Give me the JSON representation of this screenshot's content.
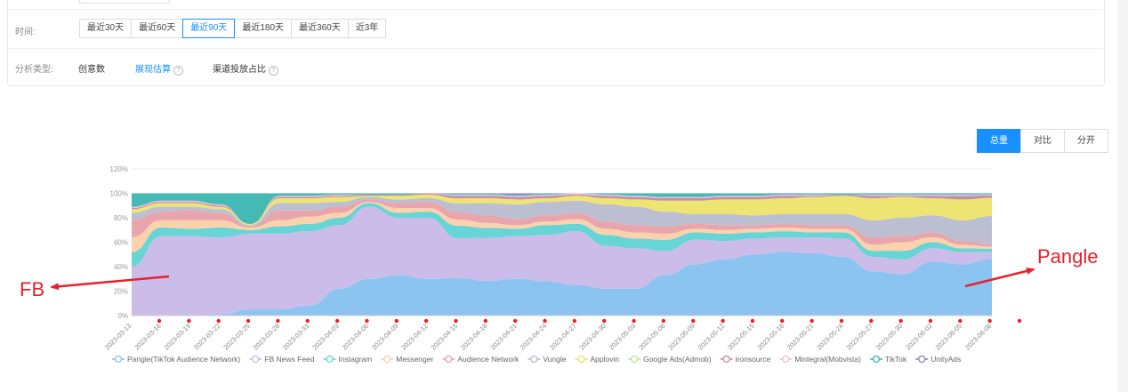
{
  "filters": {
    "time_label": "时间:",
    "time_options": [
      "最近30天",
      "最近60天",
      "最近90天",
      "最近180天",
      "最近360天",
      "近3年"
    ],
    "time_selected": "最近90天",
    "analysis_label": "分析类型:",
    "analysis_options": [
      "创意数",
      "展现估算",
      "渠道投放占比"
    ],
    "analysis_selected": "展现估算"
  },
  "view_modes": {
    "options": [
      "总量",
      "对比",
      "分开"
    ],
    "selected": "总量"
  },
  "annotations": {
    "left": "FB",
    "right": "Pangle"
  },
  "colors": {
    "accent": "#1890ff",
    "marker": "#e8202a"
  },
  "chart_data": {
    "type": "area",
    "stacked": true,
    "normalized": true,
    "ylim": [
      0,
      120
    ],
    "yticks": [
      "0%",
      "20%",
      "40%",
      "60%",
      "80%",
      "100%",
      "120%"
    ],
    "x_labels": [
      "2023-03-13",
      "2023-03-16",
      "2023-03-19",
      "2023-03-22",
      "2023-03-25",
      "2023-03-28",
      "2023-03-31",
      "2023-04-03",
      "2023-04-06",
      "2023-04-09",
      "2023-04-12",
      "2023-04-15",
      "2023-04-18",
      "2023-04-21",
      "2023-04-24",
      "2023-04-27",
      "2023-04-30",
      "2023-05-03",
      "2023-05-06",
      "2023-05-09",
      "2023-05-12",
      "2023-05-15",
      "2023-05-18",
      "2023-05-21",
      "2023-05-24",
      "2023-05-27",
      "2023-05-30",
      "2023-06-02",
      "2023-06-05",
      "2023-06-08"
    ],
    "series": [
      {
        "name": "Pangle(TikTok Audience Network)",
        "color": "#85c1f0",
        "values": [
          0,
          0,
          0,
          1,
          5,
          5,
          8,
          22,
          30,
          33,
          30,
          30,
          28,
          30,
          28,
          25,
          22,
          22,
          33,
          42,
          46,
          50,
          52,
          51,
          48,
          36,
          34,
          44,
          42,
          50
        ]
      },
      {
        "name": "FB News Feed",
        "color": "#c8b8e8",
        "values": [
          40,
          65,
          65,
          63,
          62,
          62,
          61,
          52,
          59,
          47,
          50,
          32,
          35,
          35,
          38,
          44,
          35,
          33,
          20,
          20,
          15,
          13,
          12,
          13,
          15,
          12,
          12,
          11,
          10,
          6
        ]
      },
      {
        "name": "Instagram",
        "color": "#5fd3d3",
        "values": [
          12,
          7,
          6,
          8,
          3,
          6,
          6,
          6,
          3,
          4,
          5,
          10,
          8,
          6,
          8,
          6,
          9,
          8,
          9,
          6,
          6,
          5,
          5,
          4,
          5,
          5,
          7,
          5,
          3,
          3
        ]
      },
      {
        "name": "Messenger",
        "color": "#fbd0a8",
        "values": [
          12,
          6,
          7,
          6,
          2,
          5,
          6,
          4,
          1,
          4,
          3,
          5,
          4,
          3,
          3,
          4,
          5,
          5,
          5,
          3,
          3,
          3,
          3,
          3,
          3,
          5,
          7,
          4,
          3,
          2
        ]
      },
      {
        "name": "Audience Network",
        "color": "#e8a0a8",
        "values": [
          14,
          7,
          8,
          6,
          1,
          8,
          5,
          5,
          2,
          4,
          5,
          6,
          6,
          5,
          5,
          5,
          6,
          6,
          6,
          4,
          4,
          3,
          3,
          3,
          3,
          6,
          5,
          4,
          3,
          2
        ]
      },
      {
        "name": "Vungle",
        "color": "#b8bcd0",
        "values": [
          6,
          4,
          3,
          3,
          1,
          6,
          6,
          4,
          2,
          3,
          3,
          7,
          10,
          12,
          11,
          10,
          14,
          15,
          12,
          8,
          9,
          8,
          8,
          9,
          9,
          14,
          15,
          14,
          17,
          25
        ]
      },
      {
        "name": "Applovin",
        "color": "#ece36a",
        "values": [
          3,
          3,
          3,
          2,
          1,
          4,
          4,
          4,
          1,
          3,
          3,
          4,
          4,
          4,
          3,
          4,
          5,
          6,
          9,
          11,
          12,
          13,
          13,
          14,
          15,
          18,
          17,
          14,
          17,
          16
        ]
      },
      {
        "name": "Google Ads(Admob)",
        "color": "#bfe38c",
        "values": [
          0,
          0,
          0,
          0,
          0,
          0,
          0,
          0,
          0,
          0,
          0,
          0,
          0,
          0,
          0,
          0,
          0,
          0,
          0,
          0,
          0,
          0,
          0,
          0,
          0,
          0,
          0,
          0,
          0,
          0
        ]
      },
      {
        "name": "ironsource",
        "color": "#c08aa0",
        "values": [
          1,
          1,
          1,
          1,
          0,
          1,
          1,
          1,
          1,
          1,
          1,
          2,
          2,
          2,
          2,
          1,
          2,
          2,
          2,
          2,
          2,
          2,
          2,
          1,
          1,
          2,
          1,
          2,
          3,
          2
        ]
      },
      {
        "name": "Mintegral(Mobvista)",
        "color": "#f0b8e0",
        "values": [
          1,
          1,
          1,
          1,
          0,
          1,
          1,
          1,
          0,
          0,
          0,
          1,
          1,
          1,
          1,
          1,
          1,
          1,
          1,
          1,
          1,
          1,
          1,
          1,
          0,
          1,
          1,
          1,
          1,
          1
        ]
      },
      {
        "name": "TikTok",
        "color": "#3ab6b0",
        "values": [
          11,
          6,
          6,
          9,
          25,
          2,
          2,
          1,
          1,
          1,
          0,
          1,
          1,
          1,
          1,
          0,
          1,
          2,
          3,
          3,
          2,
          2,
          1,
          1,
          1,
          1,
          1,
          1,
          1,
          1
        ]
      },
      {
        "name": "UnityAds",
        "color": "#9078c8",
        "values": [
          0,
          0,
          0,
          0,
          0,
          0,
          0,
          0,
          0,
          0,
          0,
          0,
          0,
          1,
          0,
          0,
          0,
          0,
          0,
          0,
          0,
          0,
          0,
          0,
          0,
          0,
          0,
          0,
          0,
          0
        ]
      }
    ]
  }
}
